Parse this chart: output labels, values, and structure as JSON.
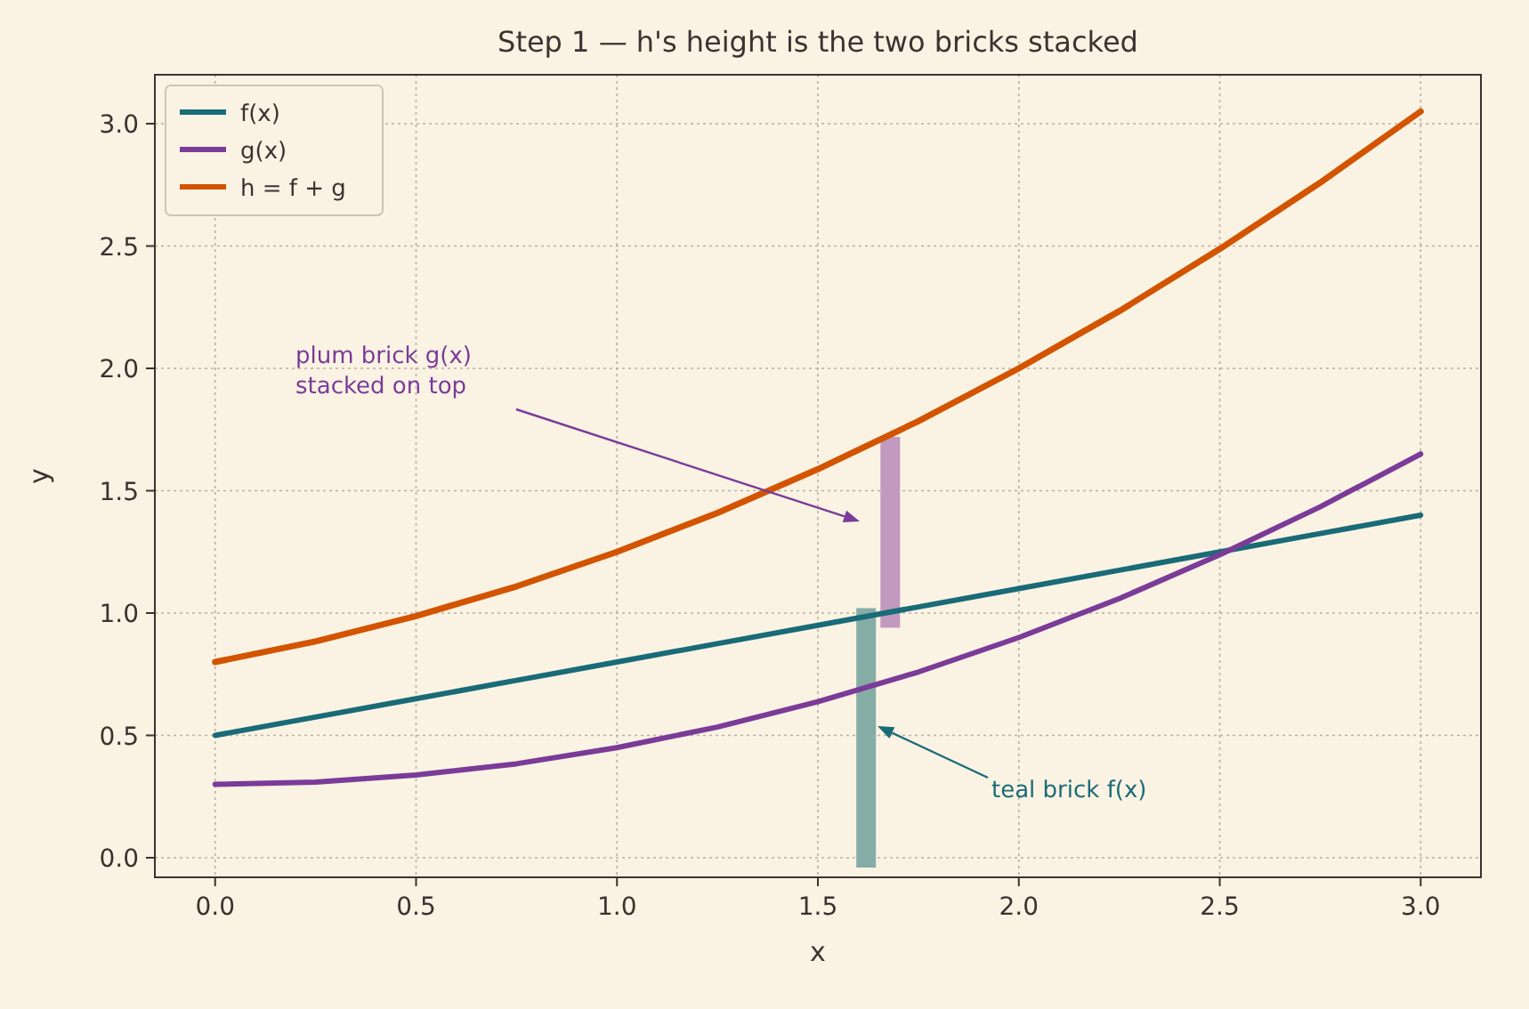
{
  "chart_data": {
    "type": "line",
    "title": "Step 1 — h's height is the two bricks stacked",
    "xlabel": "x",
    "ylabel": "y",
    "xlim": [
      -0.15,
      3.15
    ],
    "ylim": [
      -0.08,
      3.2
    ],
    "xticks": [
      {
        "value": 0,
        "label": "0.0"
      },
      {
        "value": 0.5,
        "label": "0.5"
      },
      {
        "value": 1,
        "label": "1.0"
      },
      {
        "value": 1.5,
        "label": "1.5"
      },
      {
        "value": 2,
        "label": "2.0"
      },
      {
        "value": 2.5,
        "label": "2.5"
      },
      {
        "value": 3,
        "label": "3.0"
      }
    ],
    "yticks": [
      {
        "value": 0,
        "label": "0.0"
      },
      {
        "value": 0.5,
        "label": "0.5"
      },
      {
        "value": 1,
        "label": "1.0"
      },
      {
        "value": 1.5,
        "label": "1.5"
      },
      {
        "value": 2,
        "label": "2.0"
      },
      {
        "value": 2.5,
        "label": "2.5"
      },
      {
        "value": 3,
        "label": "3.0"
      }
    ],
    "grid": true,
    "legend": "top left",
    "line_style": "solid",
    "series": [
      {
        "name": "f(x)",
        "color": "#1a6b78",
        "x": [
          0,
          0.25,
          0.5,
          0.75,
          1,
          1.25,
          1.5,
          1.75,
          2,
          2.25,
          2.5,
          2.75,
          3
        ],
        "values": [
          0.5,
          0.575,
          0.65,
          0.725,
          0.8,
          0.875,
          0.95,
          1.025,
          1.1,
          1.175,
          1.25,
          1.325,
          1.4
        ]
      },
      {
        "name": "g(x)",
        "color": "#7b3b98",
        "x": [
          0,
          0.25,
          0.5,
          0.75,
          1,
          1.25,
          1.5,
          1.75,
          2,
          2.25,
          2.5,
          2.75,
          3
        ],
        "values": [
          0.3,
          0.309,
          0.338,
          0.384,
          0.45,
          0.534,
          0.638,
          0.759,
          0.9,
          1.059,
          1.238,
          1.434,
          1.65
        ]
      },
      {
        "name": "h = f + g",
        "color": "#d35400",
        "x": [
          0,
          0.25,
          0.5,
          0.75,
          1,
          1.25,
          1.5,
          1.75,
          2,
          2.25,
          2.5,
          2.75,
          3
        ],
        "values": [
          0.8,
          0.884,
          0.988,
          1.109,
          1.25,
          1.409,
          1.588,
          1.784,
          2.0,
          2.234,
          2.488,
          2.759,
          3.05
        ]
      },
      {
        "type": "bar",
        "color": "#86aca6",
        "x": [
          1.62
        ],
        "base": [
          -0.04
        ],
        "values": [
          1.06
        ]
      },
      {
        "type": "bar",
        "color": "#c29abf",
        "x": [
          1.68
        ],
        "base": [
          0.94
        ],
        "values": [
          0.78
        ]
      }
    ],
    "annotations": [
      "plum brick g(x)\nstacked on top",
      "teal brick f(x)"
    ]
  }
}
